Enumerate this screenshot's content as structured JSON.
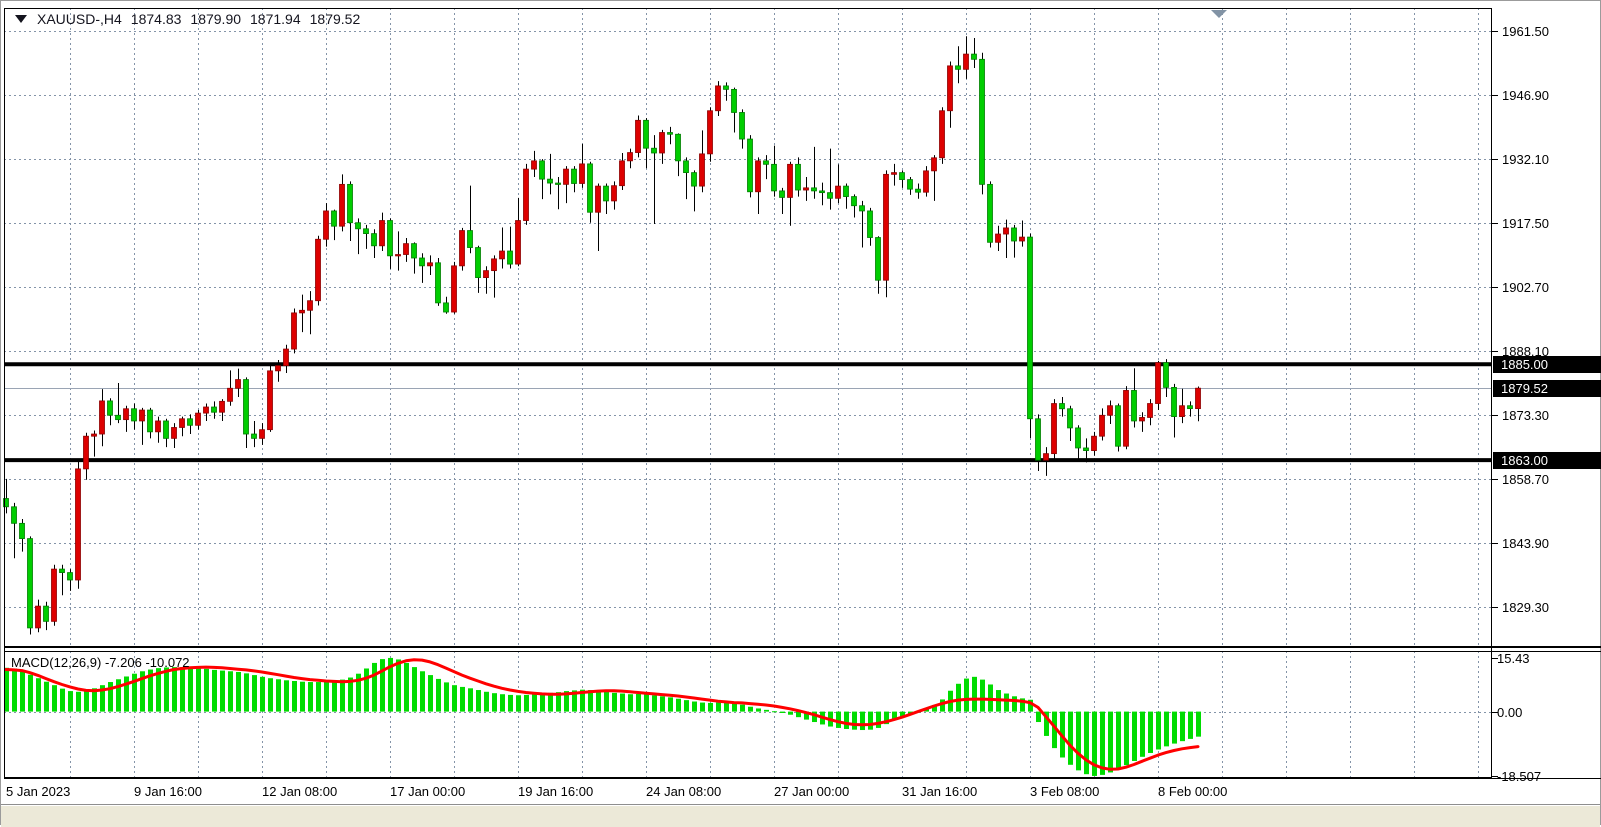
{
  "window": {
    "title_symbol": "XAUUSD-,H4",
    "ohlc": {
      "open": "1874.83",
      "high": "1879.90",
      "low": "1871.94",
      "close": "1879.52"
    }
  },
  "chart_data": {
    "type": "candlestick",
    "title": "XAUUSD-,H4",
    "symbol": "XAUUSD-",
    "timeframe": "H4",
    "last_bar": {
      "open": 1874.83,
      "high": 1879.9,
      "low": 1871.94,
      "close": 1879.52
    },
    "grid": true,
    "legend_position": "none",
    "price_axis_ticks": [
      "1961.50",
      "1946.90",
      "1932.10",
      "1917.50",
      "1902.70",
      "1888.10",
      "1873.30",
      "1858.70",
      "1843.90",
      "1829.30"
    ],
    "price_tags": [
      {
        "text": "1885.00",
        "price": 1885.0
      },
      {
        "text": "1879.52",
        "price": 1879.52
      },
      {
        "text": "1863.00",
        "price": 1863.0
      }
    ],
    "horizontal_levels": [
      1885.0,
      1863.0
    ],
    "current_price": 1879.52,
    "time_labels": [
      "5 Jan 2023",
      "9 Jan 16:00",
      "12 Jan 08:00",
      "17 Jan 00:00",
      "19 Jan 16:00",
      "24 Jan 08:00",
      "27 Jan 00:00",
      "31 Jan 16:00",
      "3 Feb 08:00",
      "8 Feb 00:00"
    ],
    "bars_per_label": 16,
    "candles_ohlc": [
      [
        1854.2,
        1858.7,
        1850.8,
        1852.3
      ],
      [
        1852.3,
        1853.2,
        1840.5,
        1848.5
      ],
      [
        1848.5,
        1849.5,
        1842.0,
        1845.0
      ],
      [
        1845.0,
        1845.5,
        1823.0,
        1824.5
      ],
      [
        1824.5,
        1831.0,
        1823.5,
        1829.5
      ],
      [
        1829.5,
        1830.5,
        1824.0,
        1826.0
      ],
      [
        1826.0,
        1839.0,
        1825.0,
        1838.0
      ],
      [
        1838.0,
        1839.0,
        1832.0,
        1837.2
      ],
      [
        1837.2,
        1838.0,
        1833.0,
        1835.5
      ],
      [
        1835.5,
        1863.0,
        1833.5,
        1861.0
      ],
      [
        1861.0,
        1869.3,
        1858.5,
        1868.5
      ],
      [
        1868.5,
        1869.8,
        1863.8,
        1869.0
      ],
      [
        1869.0,
        1879.3,
        1866.2,
        1876.6
      ],
      [
        1876.6,
        1877.2,
        1871.0,
        1873.3
      ],
      [
        1873.3,
        1880.7,
        1871.5,
        1872.3
      ],
      [
        1872.3,
        1875.5,
        1869.5,
        1874.8
      ],
      [
        1874.8,
        1876.0,
        1870.0,
        1872.0
      ],
      [
        1872.0,
        1875.0,
        1866.5,
        1874.5
      ],
      [
        1874.5,
        1875.0,
        1868.0,
        1869.5
      ],
      [
        1869.5,
        1873.0,
        1867.0,
        1872.0
      ],
      [
        1872.0,
        1872.5,
        1866.0,
        1868.0
      ],
      [
        1868.0,
        1871.5,
        1865.8,
        1870.5
      ],
      [
        1870.5,
        1873.0,
        1868.5,
        1872.5
      ],
      [
        1872.5,
        1873.5,
        1869.0,
        1871.0
      ],
      [
        1871.0,
        1874.5,
        1870.0,
        1873.8
      ],
      [
        1873.8,
        1876.0,
        1872.0,
        1875.2
      ],
      [
        1875.2,
        1876.5,
        1872.5,
        1874.0
      ],
      [
        1874.0,
        1877.0,
        1872.0,
        1876.5
      ],
      [
        1876.5,
        1883.6,
        1875.5,
        1879.5
      ],
      [
        1879.5,
        1884.0,
        1877.5,
        1881.5
      ],
      [
        1881.5,
        1882.0,
        1865.8,
        1869.0
      ],
      [
        1869.0,
        1872.0,
        1866.0,
        1868.0
      ],
      [
        1868.0,
        1871.5,
        1866.5,
        1870.0
      ],
      [
        1870.0,
        1885.4,
        1869.5,
        1883.5
      ],
      [
        1883.5,
        1886.0,
        1881.0,
        1884.7
      ],
      [
        1884.7,
        1889.5,
        1883.0,
        1888.5
      ],
      [
        1888.5,
        1897.8,
        1887.5,
        1896.8
      ],
      [
        1896.8,
        1901.0,
        1892.4,
        1897.4
      ],
      [
        1897.4,
        1901.8,
        1891.9,
        1899.6
      ],
      [
        1899.6,
        1914.5,
        1898.5,
        1913.7
      ],
      [
        1913.7,
        1922.0,
        1912.0,
        1920.2
      ],
      [
        1920.2,
        1920.5,
        1913.5,
        1916.7
      ],
      [
        1916.7,
        1928.6,
        1915.5,
        1926.3
      ],
      [
        1926.3,
        1927.0,
        1913.3,
        1917.5
      ],
      [
        1917.5,
        1918.5,
        1910.3,
        1916.1
      ],
      [
        1916.1,
        1917.0,
        1911.5,
        1915.0
      ],
      [
        1915.0,
        1916.0,
        1909.4,
        1912.2
      ],
      [
        1912.2,
        1919.8,
        1911.0,
        1918.0
      ],
      [
        1918.0,
        1918.5,
        1906.9,
        1909.9
      ],
      [
        1909.9,
        1915.5,
        1906.5,
        1910.2
      ],
      [
        1910.2,
        1914.0,
        1908.5,
        1912.7
      ],
      [
        1912.7,
        1913.0,
        1905.8,
        1909.4
      ],
      [
        1909.4,
        1910.5,
        1903.7,
        1907.6
      ],
      [
        1907.6,
        1910.0,
        1905.5,
        1908.3
      ],
      [
        1908.3,
        1909.4,
        1898.4,
        1899.1
      ],
      [
        1899.1,
        1900.5,
        1896.6,
        1897.0
      ],
      [
        1897.0,
        1908.5,
        1896.6,
        1907.6
      ],
      [
        1907.6,
        1916.3,
        1906.5,
        1915.7
      ],
      [
        1915.7,
        1926.0,
        1910.5,
        1911.8
      ],
      [
        1911.8,
        1912.2,
        1901.4,
        1904.9
      ],
      [
        1904.9,
        1907.5,
        1901.2,
        1906.5
      ],
      [
        1906.5,
        1910.0,
        1900.3,
        1909.2
      ],
      [
        1909.2,
        1916.4,
        1907.0,
        1911.0
      ],
      [
        1911.0,
        1916.6,
        1907.0,
        1908.0
      ],
      [
        1908.0,
        1923.2,
        1907.5,
        1918.0
      ],
      [
        1918.0,
        1931.0,
        1917.0,
        1929.8
      ],
      [
        1929.8,
        1934.0,
        1928.0,
        1931.7
      ],
      [
        1931.7,
        1932.1,
        1922.9,
        1927.5
      ],
      [
        1927.5,
        1933.3,
        1924.0,
        1926.6
      ],
      [
        1926.6,
        1928.0,
        1920.6,
        1926.3
      ],
      [
        1926.3,
        1930.5,
        1922.0,
        1929.8
      ],
      [
        1929.8,
        1930.5,
        1924.5,
        1926.5
      ],
      [
        1926.5,
        1935.6,
        1925.5,
        1931.0
      ],
      [
        1931.0,
        1931.5,
        1917.5,
        1919.9
      ],
      [
        1919.9,
        1926.5,
        1911.0,
        1925.9
      ],
      [
        1925.9,
        1926.5,
        1919.5,
        1922.5
      ],
      [
        1922.5,
        1927.0,
        1920.5,
        1926.0
      ],
      [
        1926.0,
        1933.5,
        1925.0,
        1931.7
      ],
      [
        1931.7,
        1934.5,
        1930.0,
        1933.6
      ],
      [
        1933.6,
        1942.1,
        1932.5,
        1941.0
      ],
      [
        1941.0,
        1941.5,
        1930.0,
        1934.6
      ],
      [
        1934.6,
        1937.6,
        1917.2,
        1933.5
      ],
      [
        1933.5,
        1938.8,
        1931.0,
        1938.2
      ],
      [
        1938.2,
        1939.5,
        1935.5,
        1937.8
      ],
      [
        1937.8,
        1938.0,
        1928.2,
        1931.7
      ],
      [
        1931.7,
        1932.5,
        1922.9,
        1929.0
      ],
      [
        1929.0,
        1929.5,
        1920.1,
        1925.9
      ],
      [
        1925.9,
        1938.7,
        1924.5,
        1933.3
      ],
      [
        1933.3,
        1944.0,
        1931.5,
        1943.2
      ],
      [
        1943.2,
        1950.0,
        1942.0,
        1948.9
      ],
      [
        1948.9,
        1949.7,
        1945.5,
        1948.1
      ],
      [
        1948.1,
        1948.5,
        1938.2,
        1942.8
      ],
      [
        1942.8,
        1943.5,
        1934.5,
        1936.7
      ],
      [
        1936.7,
        1937.6,
        1923.3,
        1924.6
      ],
      [
        1924.6,
        1932.5,
        1919.5,
        1931.7
      ],
      [
        1931.7,
        1933.0,
        1927.5,
        1930.9
      ],
      [
        1930.9,
        1935.2,
        1923.5,
        1924.8
      ],
      [
        1924.8,
        1925.5,
        1919.5,
        1923.3
      ],
      [
        1923.3,
        1931.5,
        1916.8,
        1930.9
      ],
      [
        1930.9,
        1932.5,
        1923.5,
        1925.0
      ],
      [
        1925.0,
        1928.0,
        1922.5,
        1925.5
      ],
      [
        1925.5,
        1934.9,
        1923.0,
        1924.8
      ],
      [
        1924.8,
        1926.7,
        1921.5,
        1924.4
      ],
      [
        1924.4,
        1934.5,
        1920.5,
        1923.1
      ],
      [
        1923.1,
        1930.9,
        1922.0,
        1925.9
      ],
      [
        1925.9,
        1926.5,
        1920.7,
        1923.5
      ],
      [
        1923.5,
        1924.0,
        1918.7,
        1921.4
      ],
      [
        1921.4,
        1922.5,
        1911.8,
        1920.2
      ],
      [
        1920.2,
        1920.9,
        1912.2,
        1914.1
      ],
      [
        1914.1,
        1914.4,
        1901.2,
        1904.3
      ],
      [
        1904.3,
        1929.5,
        1900.4,
        1928.6
      ],
      [
        1928.6,
        1931.0,
        1926.0,
        1929.0
      ],
      [
        1929.0,
        1929.5,
        1925.5,
        1927.4
      ],
      [
        1927.4,
        1928.0,
        1923.9,
        1925.2
      ],
      [
        1925.2,
        1926.5,
        1923.0,
        1924.5
      ],
      [
        1924.5,
        1930.5,
        1923.5,
        1929.4
      ],
      [
        1929.4,
        1933.0,
        1922.5,
        1932.4
      ],
      [
        1932.4,
        1944.0,
        1931.0,
        1943.2
      ],
      [
        1943.2,
        1954.5,
        1939.3,
        1953.5
      ],
      [
        1953.5,
        1958.0,
        1949.5,
        1952.7
      ],
      [
        1952.7,
        1960.3,
        1950.5,
        1956.2
      ],
      [
        1956.2,
        1959.9,
        1953.0,
        1955.0
      ],
      [
        1955.0,
        1956.5,
        1924.0,
        1926.3
      ],
      [
        1926.3,
        1927.0,
        1911.8,
        1913.0
      ],
      [
        1913.0,
        1916.8,
        1911.0,
        1914.9
      ],
      [
        1914.9,
        1918.2,
        1909.4,
        1916.3
      ],
      [
        1916.3,
        1917.0,
        1909.5,
        1913.3
      ],
      [
        1913.3,
        1918.0,
        1912.0,
        1914.2
      ],
      [
        1914.2,
        1915.0,
        1868.1,
        1872.5
      ],
      [
        1872.5,
        1873.5,
        1860.5,
        1863.0
      ],
      [
        1863.0,
        1866.0,
        1859.4,
        1864.5
      ],
      [
        1864.5,
        1877.0,
        1863.0,
        1876.0
      ],
      [
        1876.0,
        1877.5,
        1873.0,
        1874.8
      ],
      [
        1874.8,
        1875.5,
        1867.4,
        1870.4
      ],
      [
        1870.4,
        1871.0,
        1863.3,
        1865.8
      ],
      [
        1865.8,
        1868.0,
        1862.5,
        1865.2
      ],
      [
        1865.2,
        1869.5,
        1864.0,
        1868.5
      ],
      [
        1868.5,
        1874.9,
        1867.5,
        1873.3
      ],
      [
        1873.3,
        1876.7,
        1871.3,
        1875.5
      ],
      [
        1875.5,
        1876.0,
        1865.0,
        1866.2
      ],
      [
        1866.2,
        1880.0,
        1865.5,
        1879.0
      ],
      [
        1879.0,
        1884.1,
        1870.5,
        1872.0
      ],
      [
        1872.0,
        1874.0,
        1869.5,
        1872.8
      ],
      [
        1872.8,
        1877.0,
        1871.0,
        1876.0
      ],
      [
        1876.0,
        1885.8,
        1874.5,
        1885.4
      ],
      [
        1885.4,
        1886.2,
        1877.5,
        1879.7
      ],
      [
        1879.7,
        1880.5,
        1868.2,
        1873.0
      ],
      [
        1873.0,
        1879.4,
        1871.5,
        1875.5
      ],
      [
        1875.5,
        1876.5,
        1873.0,
        1874.83
      ],
      [
        1874.83,
        1879.9,
        1871.94,
        1879.52
      ]
    ],
    "macd": {
      "label": "MACD(12,26,9)",
      "value_str": "-7.206",
      "signal_str": "-10.072",
      "value": -7.206,
      "signal_value": -10.072,
      "axis_ticks": [
        "15.43",
        "0.00",
        "-18.507"
      ],
      "histogram": [
        12.6,
        12.4,
        11.8,
        10.6,
        9.6,
        8.6,
        7.6,
        6.6,
        5.9,
        5.7,
        6.1,
        6.7,
        7.6,
        8.5,
        9.3,
        10.1,
        10.9,
        11.6,
        12.1,
        12.5,
        12.7,
        12.8,
        12.8,
        12.7,
        12.5,
        12.3,
        12.0,
        11.8,
        11.6,
        11.4,
        11.0,
        10.5,
        10.0,
        9.6,
        9.3,
        9.0,
        8.8,
        8.6,
        8.5,
        8.5,
        8.6,
        8.8,
        9.2,
        9.8,
        10.9,
        12.4,
        14.0,
        15.1,
        15.43,
        15.0,
        14.0,
        12.8,
        11.6,
        10.5,
        9.4,
        8.4,
        7.6,
        7.1,
        6.7,
        6.2,
        5.7,
        5.3,
        5.0,
        4.8,
        4.7,
        4.8,
        5.0,
        5.2,
        5.4,
        5.6,
        5.9,
        6.1,
        6.3,
        6.2,
        6.0,
        5.7,
        5.4,
        5.2,
        5.0,
        5.1,
        5.0,
        4.7,
        4.4,
        4.1,
        3.7,
        3.3,
        2.9,
        2.6,
        2.5,
        2.6,
        2.6,
        2.4,
        2.0,
        1.4,
        0.9,
        0.5,
        0.1,
        -0.4,
        -0.9,
        -1.6,
        -2.3,
        -3.0,
        -3.7,
        -4.3,
        -4.7,
        -5.0,
        -5.2,
        -5.3,
        -5.2,
        -4.7,
        -3.6,
        -2.4,
        -1.4,
        -0.6,
        0.1,
        0.9,
        1.9,
        3.5,
        6.0,
        8.0,
        9.5,
        10.0,
        9.2,
        7.8,
        6.2,
        5.2,
        4.4,
        3.8,
        3.4,
        -3.0,
        -7.0,
        -10.5,
        -13.2,
        -15.3,
        -16.9,
        -18.0,
        -18.507,
        -18.2,
        -17.5,
        -16.5,
        -15.4,
        -14.2,
        -13.0,
        -11.9,
        -10.9,
        -10.0,
        -9.2,
        -8.5,
        -7.85,
        -7.206
      ],
      "signal": [
        12.1,
        12.0,
        11.8,
        11.2,
        10.4,
        9.5,
        8.6,
        7.8,
        7.1,
        6.5,
        6.1,
        6.0,
        6.2,
        6.6,
        7.2,
        7.9,
        8.7,
        9.5,
        10.3,
        11.0,
        11.6,
        12.1,
        12.4,
        12.6,
        12.7,
        12.8,
        12.7,
        12.6,
        12.4,
        12.2,
        12.0,
        11.7,
        11.4,
        11.0,
        10.6,
        10.2,
        9.8,
        9.5,
        9.2,
        9.0,
        8.8,
        8.7,
        8.6,
        8.7,
        9.0,
        9.6,
        10.5,
        11.7,
        12.9,
        13.9,
        14.6,
        14.9,
        14.8,
        14.3,
        13.5,
        12.5,
        11.5,
        10.5,
        9.6,
        8.8,
        8.0,
        7.3,
        6.7,
        6.2,
        5.8,
        5.5,
        5.3,
        5.1,
        5.0,
        5.0,
        5.1,
        5.3,
        5.5,
        5.7,
        5.9,
        6.0,
        6.0,
        5.9,
        5.7,
        5.5,
        5.3,
        5.1,
        4.9,
        4.7,
        4.5,
        4.2,
        3.9,
        3.6,
        3.3,
        3.0,
        2.8,
        2.6,
        2.5,
        2.3,
        2.1,
        1.9,
        1.6,
        1.2,
        0.8,
        0.3,
        -0.3,
        -0.9,
        -1.6,
        -2.3,
        -2.9,
        -3.4,
        -3.7,
        -3.8,
        -3.7,
        -3.4,
        -2.9,
        -2.3,
        -1.6,
        -0.8,
        0.0,
        0.8,
        1.6,
        2.3,
        2.9,
        3.3,
        3.5,
        3.6,
        3.6,
        3.5,
        3.4,
        3.3,
        3.2,
        3.0,
        2.6,
        1.2,
        -1.5,
        -4.2,
        -7.0,
        -9.7,
        -12.0,
        -13.9,
        -15.3,
        -16.2,
        -16.6,
        -16.5,
        -16.0,
        -15.2,
        -14.3,
        -13.4,
        -12.5,
        -11.8,
        -11.2,
        -10.7,
        -10.35,
        -10.072
      ]
    }
  },
  "colors": {
    "bull": "#dd0000",
    "bull_edge": "#8e0000",
    "bear": "#00cd00",
    "bear_edge": "#007d00",
    "wick": "#000000",
    "histogram": "#00dc00",
    "signal_line": "#ff0000",
    "grid": "#8494a8",
    "level_line": "#000000",
    "price_line": "#9aa4b4",
    "tag_bg": "#000000",
    "tag_fg": "#ffffff",
    "shift_marker": "#8293a5"
  }
}
